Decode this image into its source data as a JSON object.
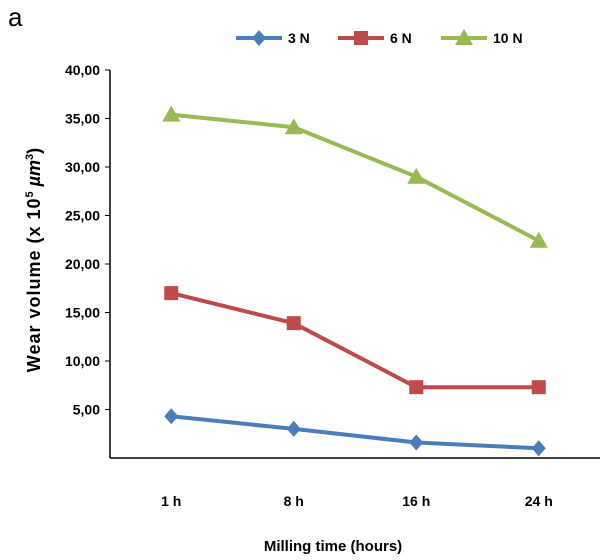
{
  "panel_label": "a",
  "chart_data": {
    "type": "line",
    "categories": [
      "1 h",
      "8 h",
      "16 h",
      "24 h"
    ],
    "series": [
      {
        "name": "3 N",
        "color": "#4a7ebb",
        "marker": "diamond",
        "values": [
          4.3,
          3.0,
          1.6,
          1.0
        ]
      },
      {
        "name": "6 N",
        "color": "#be4b48",
        "marker": "square",
        "values": [
          17.0,
          13.9,
          7.3,
          7.3
        ]
      },
      {
        "name": "10 N",
        "color": "#98b954",
        "marker": "triangle",
        "values": [
          35.4,
          34.1,
          29.0,
          22.4
        ]
      }
    ],
    "xlabel": "Milling time (hours)",
    "ylabel": "Wear volume (x 10",
    "ylabel_exponent": "5",
    "ylabel_unit": " µm",
    "ylabel_unit_exponent": "3",
    "ylabel_close": ")",
    "y_ticks": [
      "5,00",
      "10,00",
      "15,00",
      "20,00",
      "25,00",
      "30,00",
      "35,00",
      "40,00"
    ],
    "y_tick_values": [
      5,
      10,
      15,
      20,
      25,
      30,
      35,
      40
    ],
    "ylim": [
      0,
      40
    ],
    "grid": false,
    "legend_position": "top"
  }
}
